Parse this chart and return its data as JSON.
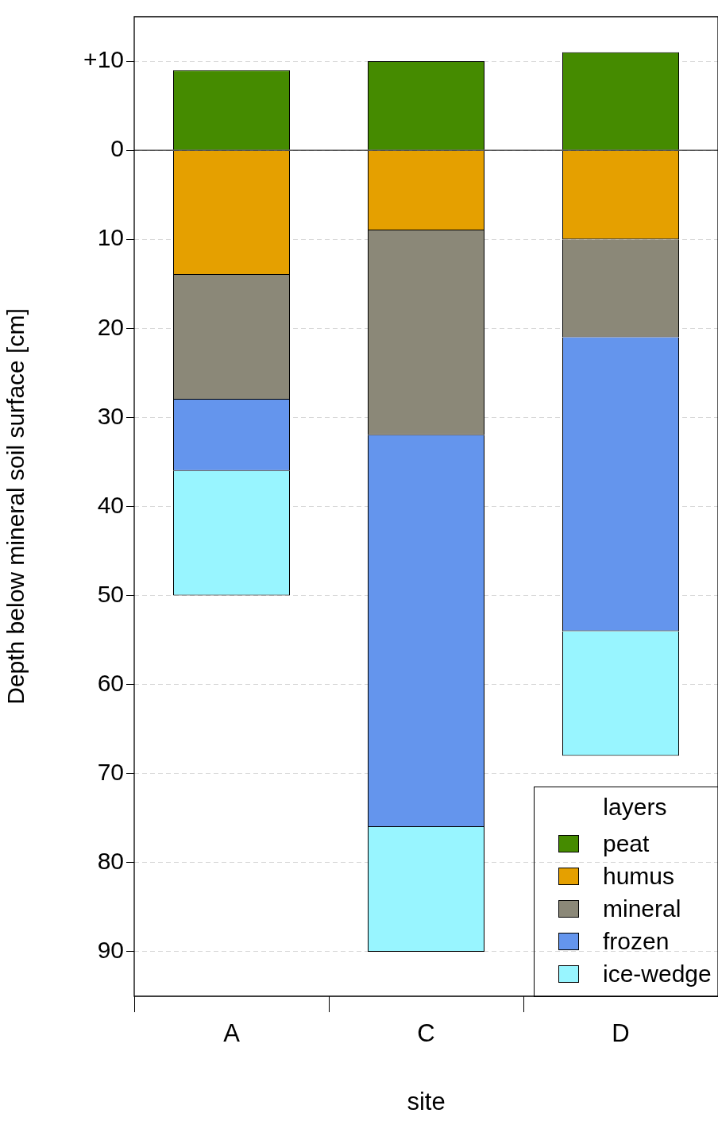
{
  "chart_data": {
    "type": "bar",
    "stacked": true,
    "xlabel": "site",
    "ylabel": "Depth below mineral soil surface [cm]",
    "legend_title": "layers",
    "categories": [
      "A",
      "C",
      "D"
    ],
    "series": [
      {
        "name": "peat",
        "color": "#458b00",
        "values": [
          -9,
          -10,
          -11
        ]
      },
      {
        "name": "humus",
        "color": "#e5a000",
        "values": [
          14,
          9,
          10
        ]
      },
      {
        "name": "mineral",
        "color": "#8b8878",
        "values": [
          14,
          23,
          11
        ]
      },
      {
        "name": "frozen",
        "color": "#6495ed",
        "values": [
          8,
          44,
          33
        ]
      },
      {
        "name": "ice-wedge",
        "color": "#98f5ff",
        "values": [
          14,
          14,
          14
        ]
      }
    ],
    "ylim": [
      95,
      -15
    ],
    "yticks": [
      {
        "value": -10,
        "label": "+10"
      },
      0,
      10,
      20,
      30,
      40,
      50,
      60,
      70,
      80,
      90
    ],
    "grid": "y",
    "legend": "bottom right",
    "ref_lines": [
      {
        "axis": "y",
        "value": 0,
        "color": "#000000"
      }
    ]
  }
}
